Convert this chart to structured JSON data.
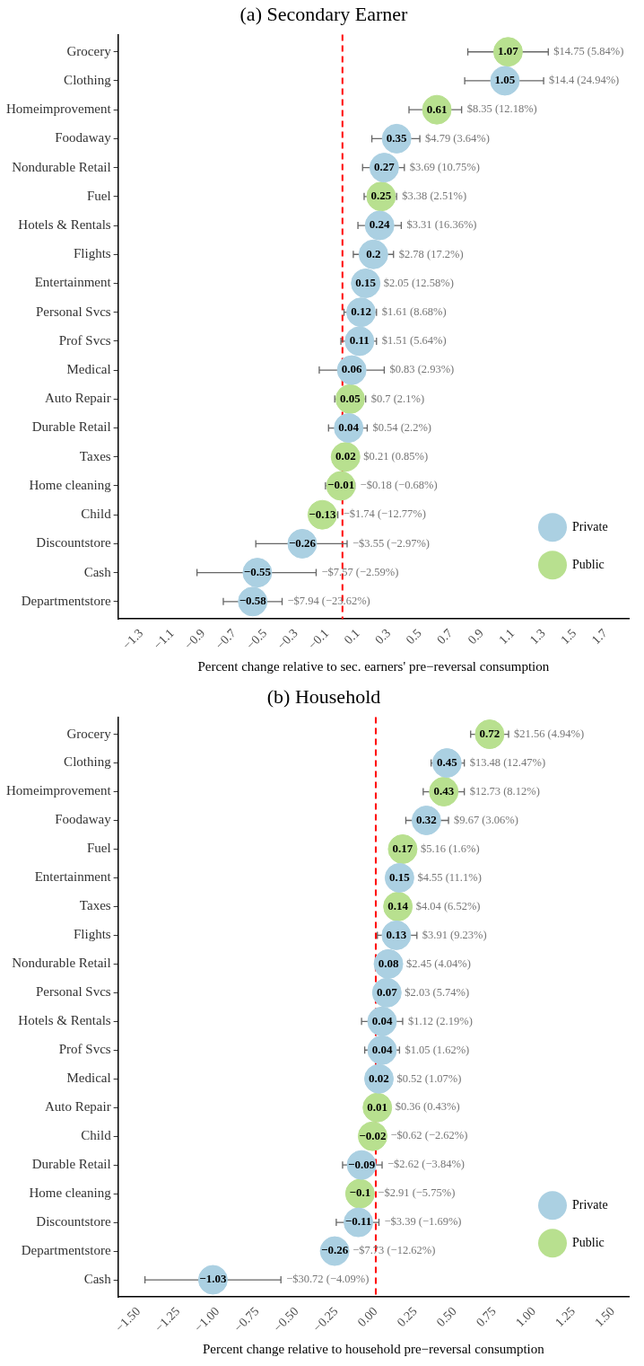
{
  "chart_data": [
    {
      "type": "scatter",
      "orientation": "horizontal",
      "title": "(a) Secondary Earner",
      "xlabel": "Percent change relative to sec. earners' pre−reversal consumption",
      "categories": [
        "Grocery",
        "Clothing",
        "Homeimprovement",
        "Foodaway",
        "Nondurable Retail",
        "Fuel",
        "Hotels & Rentals",
        "Flights",
        "Entertainment",
        "Personal Svcs",
        "Prof Svcs",
        "Medical",
        "Auto Repair",
        "Durable Retail",
        "Taxes",
        "Home cleaning",
        "Child",
        "Discountstore",
        "Cash",
        "Departmentstore"
      ],
      "series": [
        {
          "name": "Private",
          "color": "#abd0e2",
          "values": [
            null,
            1.05,
            null,
            0.35,
            0.27,
            null,
            0.24,
            0.2,
            0.15,
            0.12,
            0.11,
            0.06,
            null,
            0.04,
            null,
            null,
            null,
            -0.26,
            -0.55,
            -0.58
          ],
          "errors": [
            null,
            [
              0.79,
              1.3
            ],
            null,
            [
              0.19,
              0.5
            ],
            [
              0.13,
              0.4
            ],
            null,
            [
              0.1,
              0.38
            ],
            [
              0.07,
              0.33
            ],
            null,
            [
              0.01,
              0.22
            ],
            [
              -0.01,
              0.22
            ],
            [
              -0.15,
              0.27
            ],
            null,
            [
              -0.09,
              0.16
            ],
            null,
            null,
            null,
            [
              -0.56,
              0.03
            ],
            [
              -0.94,
              -0.17
            ],
            [
              -0.77,
              -0.39
            ]
          ]
        },
        {
          "name": "Public",
          "color": "#b8e08f",
          "values": [
            1.07,
            null,
            0.61,
            null,
            null,
            0.25,
            null,
            null,
            null,
            null,
            null,
            null,
            0.05,
            null,
            0.02,
            -0.01,
            -0.13,
            null,
            null,
            null
          ],
          "errors": [
            [
              0.81,
              1.33
            ],
            null,
            [
              0.43,
              0.77
            ],
            null,
            null,
            [
              0.14,
              0.35
            ],
            null,
            null,
            null,
            null,
            null,
            null,
            [
              -0.05,
              0.15
            ],
            null,
            null,
            [
              -0.11,
              0.08
            ],
            [
              -0.13,
              -0.03
            ],
            null,
            null,
            null
          ]
        }
      ],
      "data_labels": true,
      "annotations": [
        {
          "text": "$14.75 (5.84%)",
          "x": 1.33,
          "y": "Grocery"
        },
        {
          "text": "$14.4 (24.94%)",
          "x": 1.3,
          "y": "Clothing"
        },
        {
          "text": "$8.35 (12.18%)",
          "x": 0.77,
          "y": "Homeimprovement"
        },
        {
          "text": "$4.79 (3.64%)",
          "x": 0.5,
          "y": "Foodaway"
        },
        {
          "text": "$3.69 (10.75%)",
          "x": 0.4,
          "y": "Nondurable Retail"
        },
        {
          "text": "$3.38 (2.51%)",
          "x": 0.35,
          "y": "Fuel"
        },
        {
          "text": "$3.31 (16.36%)",
          "x": 0.38,
          "y": "Hotels & Rentals"
        },
        {
          "text": "$2.78 (17.2%)",
          "x": 0.33,
          "y": "Flights"
        },
        {
          "text": "$2.05 (12.58%)",
          "x": 0.15,
          "y": "Entertainment"
        },
        {
          "text": "$1.61 (8.68%)",
          "x": 0.22,
          "y": "Personal Svcs"
        },
        {
          "text": "$1.51 (5.64%)",
          "x": 0.22,
          "y": "Prof Svcs"
        },
        {
          "text": "$0.83 (2.93%)",
          "x": 0.27,
          "y": "Medical"
        },
        {
          "text": "$0.7 (2.1%)",
          "x": 0.15,
          "y": "Auto Repair"
        },
        {
          "text": "$0.54 (2.2%)",
          "x": 0.16,
          "y": "Durable Retail"
        },
        {
          "text": "$0.21 (0.85%)",
          "x": 0.02,
          "y": "Taxes"
        },
        {
          "text": "−$0.18 (−0.68%)",
          "x": 0.08,
          "y": "Home cleaning"
        },
        {
          "text": "−$1.74 (−12.77%)",
          "x": -0.03,
          "y": "Child"
        },
        {
          "text": "−$3.55 (−2.97%)",
          "x": 0.03,
          "y": "Discountstore"
        },
        {
          "text": "−$7.57 (−2.59%)",
          "x": -0.17,
          "y": "Cash"
        },
        {
          "text": "−$7.94 (−23.62%)",
          "x": -0.39,
          "y": "Departmentstore"
        }
      ],
      "ref_lines": [
        {
          "axis": "x",
          "value": 0,
          "color": "#ff0000",
          "line_style": "dashed"
        }
      ],
      "xlim": [
        -1.45,
        1.85
      ],
      "xticks": [
        {
          "value": -1.3,
          "label": "−1.3"
        },
        {
          "value": -1.1,
          "label": "−1.1"
        },
        {
          "value": -0.9,
          "label": "−0.9"
        },
        {
          "value": -0.7,
          "label": "−0.7"
        },
        {
          "value": -0.5,
          "label": "−0.5"
        },
        {
          "value": -0.3,
          "label": "−0.3"
        },
        {
          "value": -0.1,
          "label": "−0.1"
        },
        0.1,
        0.3,
        0.5,
        0.7,
        0.9,
        1.1,
        1.3,
        1.5,
        1.7
      ],
      "legend": "bottom right",
      "grid": false,
      "marker": "circle"
    },
    {
      "type": "scatter",
      "orientation": "horizontal",
      "title": "(b) Household",
      "xlabel": "Percent change relative to household pre−reversal consumption",
      "categories": [
        "Grocery",
        "Clothing",
        "Homeimprovement",
        "Foodaway",
        "Fuel",
        "Entertainment",
        "Taxes",
        "Flights",
        "Nondurable Retail",
        "Personal Svcs",
        "Hotels & Rentals",
        "Prof Svcs",
        "Medical",
        "Auto Repair",
        "Child",
        "Durable Retail",
        "Home cleaning",
        "Discountstore",
        "Departmentstore",
        "Cash"
      ],
      "series": [
        {
          "name": "Private",
          "color": "#abd0e2",
          "values": [
            null,
            0.45,
            null,
            0.32,
            null,
            0.15,
            null,
            0.13,
            0.08,
            0.07,
            0.04,
            0.04,
            0.02,
            null,
            null,
            -0.09,
            null,
            -0.11,
            -0.26,
            -1.03
          ],
          "errors": [
            null,
            [
              0.35,
              0.56
            ],
            null,
            [
              0.19,
              0.46
            ],
            null,
            null,
            null,
            [
              0.01,
              0.26
            ],
            null,
            null,
            [
              -0.09,
              0.17
            ],
            [
              -0.07,
              0.15
            ],
            null,
            null,
            null,
            [
              -0.21,
              0.04
            ],
            null,
            [
              -0.25,
              0.02
            ],
            null,
            [
              -1.46,
              -0.6
            ]
          ]
        },
        {
          "name": "Public",
          "color": "#b8e08f",
          "values": [
            0.72,
            null,
            0.43,
            null,
            0.17,
            null,
            0.14,
            null,
            null,
            null,
            null,
            null,
            null,
            0.01,
            -0.02,
            null,
            -0.1,
            null,
            null,
            null
          ],
          "errors": [
            [
              0.6,
              0.84
            ],
            null,
            [
              0.3,
              0.56
            ],
            null,
            null,
            null,
            null,
            null,
            null,
            null,
            null,
            null,
            null,
            null,
            null,
            null,
            null,
            null,
            null,
            null
          ]
        }
      ],
      "data_labels": true,
      "annotations": [
        {
          "text": "$21.56 (4.94%)",
          "x": 0.84,
          "y": "Grocery"
        },
        {
          "text": "$13.48 (12.47%)",
          "x": 0.56,
          "y": "Clothing"
        },
        {
          "text": "$12.73 (8.12%)",
          "x": 0.56,
          "y": "Homeimprovement"
        },
        {
          "text": "$9.67 (3.06%)",
          "x": 0.46,
          "y": "Foodaway"
        },
        {
          "text": "$5.16 (1.6%)",
          "x": 0.17,
          "y": "Fuel"
        },
        {
          "text": "$4.55 (11.1%)",
          "x": 0.15,
          "y": "Entertainment"
        },
        {
          "text": "$4.04 (6.52%)",
          "x": 0.14,
          "y": "Taxes"
        },
        {
          "text": "$3.91 (9.23%)",
          "x": 0.26,
          "y": "Flights"
        },
        {
          "text": "$2.45 (4.04%)",
          "x": 0.08,
          "y": "Nondurable Retail"
        },
        {
          "text": "$2.03 (5.74%)",
          "x": 0.07,
          "y": "Personal Svcs"
        },
        {
          "text": "$1.12 (2.19%)",
          "x": 0.17,
          "y": "Hotels & Rentals"
        },
        {
          "text": "$1.05 (1.62%)",
          "x": 0.15,
          "y": "Prof Svcs"
        },
        {
          "text": "$0.52 (1.07%)",
          "x": 0.02,
          "y": "Medical"
        },
        {
          "text": "$0.36 (0.43%)",
          "x": 0.01,
          "y": "Auto Repair"
        },
        {
          "text": "−$0.62 (−2.62%)",
          "x": -0.02,
          "y": "Child"
        },
        {
          "text": "−$2.62 (−3.84%)",
          "x": 0.04,
          "y": "Durable Retail"
        },
        {
          "text": "−$2.91 (−5.75%)",
          "x": -0.1,
          "y": "Home cleaning"
        },
        {
          "text": "−$3.39 (−1.69%)",
          "x": 0.02,
          "y": "Discountstore"
        },
        {
          "text": "−$7.73 (−12.62%)",
          "x": -0.26,
          "y": "Departmentstore"
        },
        {
          "text": "−$30.72 (−4.09%)",
          "x": -0.6,
          "y": "Cash"
        }
      ],
      "ref_lines": [
        {
          "axis": "x",
          "value": 0,
          "color": "#ff0000",
          "line_style": "dashed"
        }
      ],
      "xlim": [
        -1.63,
        1.6
      ],
      "xticks": [
        {
          "value": -1.5,
          "label": "−1.50"
        },
        {
          "value": -1.25,
          "label": "−1.25"
        },
        {
          "value": -1,
          "label": "−1.00"
        },
        {
          "value": -0.75,
          "label": "−0.75"
        },
        {
          "value": -0.5,
          "label": "−0.50"
        },
        {
          "value": -0.25,
          "label": "−0.25"
        },
        {
          "value": 0,
          "label": "0.00"
        },
        {
          "value": 0.25,
          "label": "0.25"
        },
        {
          "value": 0.5,
          "label": "0.50"
        },
        {
          "value": 0.75,
          "label": "0.75"
        },
        {
          "value": 1,
          "label": "1.00"
        },
        {
          "value": 1.25,
          "label": "1.25"
        },
        {
          "value": 1.5,
          "label": "1.50"
        }
      ],
      "legend": "bottom right",
      "grid": false,
      "marker": "circle"
    }
  ]
}
